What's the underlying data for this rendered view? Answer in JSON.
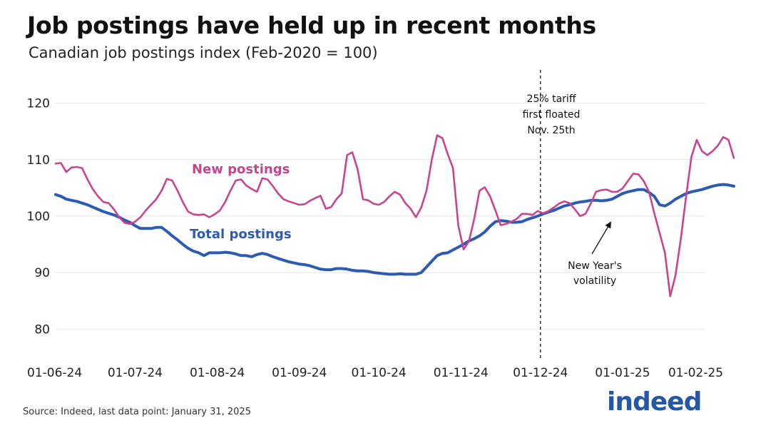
{
  "title": "Job postings have held up in recent months",
  "subtitle": "Canadian job postings index (Feb-2020 = 100)",
  "source": "Source: Indeed, last data point: January 31, 2025",
  "logo": {
    "text": "indeed",
    "color": "#2557a7"
  },
  "colors": {
    "new": "#c8448f",
    "total": "#2c5bb1",
    "grid": "#e3e3e3"
  },
  "chart_data": {
    "type": "line",
    "title": "Job postings have held up in recent months",
    "subtitle": "Canadian job postings index (Feb-2020 = 100)",
    "xlabel": "",
    "ylabel": "",
    "x_ticks": [
      "01-06-24",
      "01-07-24",
      "01-08-24",
      "01-09-24",
      "01-10-24",
      "01-11-24",
      "01-12-24",
      "01-01-25",
      "01-02-25"
    ],
    "xlim": [
      "2024-06-01",
      "2025-02-01"
    ],
    "y_ticks": [
      "80",
      "90",
      "100",
      "110",
      "120"
    ],
    "ylim": [
      77,
      125
    ],
    "grid": "horizontal",
    "series": [
      {
        "name": "New postings",
        "color": "#c8448f",
        "points": [
          [
            "2024-06-01",
            109.3
          ],
          [
            "2024-06-03",
            109.4
          ],
          [
            "2024-06-05",
            107.8
          ],
          [
            "2024-06-07",
            108.6
          ],
          [
            "2024-06-09",
            108.7
          ],
          [
            "2024-06-11",
            108.5
          ],
          [
            "2024-06-13",
            106.5
          ],
          [
            "2024-06-15",
            104.8
          ],
          [
            "2024-06-17",
            103.5
          ],
          [
            "2024-06-19",
            102.5
          ],
          [
            "2024-06-21",
            102.3
          ],
          [
            "2024-06-23",
            101.2
          ],
          [
            "2024-06-25",
            99.8
          ],
          [
            "2024-06-27",
            98.8
          ],
          [
            "2024-06-29",
            98.6
          ],
          [
            "2024-07-01",
            99.0
          ],
          [
            "2024-07-03",
            99.8
          ],
          [
            "2024-07-05",
            101.0
          ],
          [
            "2024-07-07",
            102.0
          ],
          [
            "2024-07-09",
            103.0
          ],
          [
            "2024-07-11",
            104.5
          ],
          [
            "2024-07-13",
            106.6
          ],
          [
            "2024-07-15",
            106.3
          ],
          [
            "2024-07-17",
            104.5
          ],
          [
            "2024-07-19",
            102.5
          ],
          [
            "2024-07-21",
            100.8
          ],
          [
            "2024-07-23",
            100.3
          ],
          [
            "2024-07-25",
            100.2
          ],
          [
            "2024-07-27",
            100.3
          ],
          [
            "2024-07-29",
            99.8
          ],
          [
            "2024-07-31",
            100.3
          ],
          [
            "2024-08-02",
            101.0
          ],
          [
            "2024-08-04",
            102.5
          ],
          [
            "2024-08-06",
            104.5
          ],
          [
            "2024-08-08",
            106.3
          ],
          [
            "2024-08-10",
            106.5
          ],
          [
            "2024-08-12",
            105.4
          ],
          [
            "2024-08-14",
            104.8
          ],
          [
            "2024-08-16",
            104.3
          ],
          [
            "2024-08-18",
            106.7
          ],
          [
            "2024-08-20",
            106.5
          ],
          [
            "2024-08-22",
            105.3
          ],
          [
            "2024-08-24",
            104.0
          ],
          [
            "2024-08-26",
            103.0
          ],
          [
            "2024-08-28",
            102.6
          ],
          [
            "2024-08-30",
            102.3
          ],
          [
            "2024-09-01",
            102.0
          ],
          [
            "2024-09-03",
            102.1
          ],
          [
            "2024-09-05",
            102.7
          ],
          [
            "2024-09-07",
            103.2
          ],
          [
            "2024-09-09",
            103.6
          ],
          [
            "2024-09-11",
            101.3
          ],
          [
            "2024-09-13",
            101.6
          ],
          [
            "2024-09-15",
            103.0
          ],
          [
            "2024-09-17",
            104.0
          ],
          [
            "2024-09-19",
            110.8
          ],
          [
            "2024-09-21",
            111.3
          ],
          [
            "2024-09-23",
            108.3
          ],
          [
            "2024-09-25",
            103.0
          ],
          [
            "2024-09-27",
            102.8
          ],
          [
            "2024-09-29",
            102.2
          ],
          [
            "2024-10-01",
            102.0
          ],
          [
            "2024-10-03",
            102.5
          ],
          [
            "2024-10-05",
            103.5
          ],
          [
            "2024-10-07",
            104.3
          ],
          [
            "2024-10-09",
            103.8
          ],
          [
            "2024-10-11",
            102.3
          ],
          [
            "2024-10-13",
            101.3
          ],
          [
            "2024-10-15",
            99.8
          ],
          [
            "2024-10-17",
            101.5
          ],
          [
            "2024-10-19",
            104.5
          ],
          [
            "2024-10-21",
            110.0
          ],
          [
            "2024-10-23",
            114.3
          ],
          [
            "2024-10-25",
            113.8
          ],
          [
            "2024-10-27",
            111.0
          ],
          [
            "2024-10-29",
            108.5
          ],
          [
            "2024-10-31",
            98.3
          ],
          [
            "2024-11-02",
            94.1
          ],
          [
            "2024-11-04",
            95.5
          ],
          [
            "2024-11-06",
            99.5
          ],
          [
            "2024-11-08",
            104.5
          ],
          [
            "2024-11-10",
            105.1
          ],
          [
            "2024-11-12",
            103.5
          ],
          [
            "2024-11-14",
            101.0
          ],
          [
            "2024-11-16",
            98.4
          ],
          [
            "2024-11-18",
            98.6
          ],
          [
            "2024-11-20",
            99.0
          ],
          [
            "2024-11-22",
            99.5
          ],
          [
            "2024-11-24",
            100.4
          ],
          [
            "2024-11-26",
            100.4
          ],
          [
            "2024-11-28",
            100.2
          ],
          [
            "2024-11-30",
            100.9
          ],
          [
            "2024-12-02",
            100.5
          ],
          [
            "2024-12-04",
            100.9
          ],
          [
            "2024-12-06",
            101.5
          ],
          [
            "2024-12-08",
            102.2
          ],
          [
            "2024-12-10",
            102.6
          ],
          [
            "2024-12-12",
            102.3
          ],
          [
            "2024-12-14",
            101.2
          ],
          [
            "2024-12-16",
            100.0
          ],
          [
            "2024-12-18",
            100.4
          ],
          [
            "2024-12-20",
            102.2
          ],
          [
            "2024-12-22",
            104.3
          ],
          [
            "2024-12-24",
            104.6
          ],
          [
            "2024-12-26",
            104.7
          ],
          [
            "2024-12-28",
            104.3
          ],
          [
            "2024-12-30",
            104.3
          ],
          [
            "2025-01-01",
            104.9
          ],
          [
            "2025-01-03",
            106.2
          ],
          [
            "2025-01-05",
            107.5
          ],
          [
            "2025-01-07",
            107.4
          ],
          [
            "2025-01-09",
            106.2
          ],
          [
            "2025-01-11",
            104.3
          ],
          [
            "2025-01-13",
            100.5
          ],
          [
            "2025-01-15",
            97.0
          ],
          [
            "2025-01-17",
            93.5
          ],
          [
            "2025-01-19",
            85.8
          ],
          [
            "2025-01-21",
            89.5
          ],
          [
            "2025-01-23",
            96.0
          ],
          [
            "2025-01-25",
            103.5
          ],
          [
            "2025-01-27",
            110.5
          ],
          [
            "2025-01-29",
            113.5
          ],
          [
            "2025-01-31",
            111.5
          ],
          [
            "2025-02-02",
            110.8
          ],
          [
            "2025-02-04",
            111.5
          ],
          [
            "2025-02-06",
            112.5
          ],
          [
            "2025-02-08",
            114.0
          ],
          [
            "2025-02-10",
            113.5
          ],
          [
            "2025-02-12",
            110.3
          ]
        ]
      },
      {
        "name": "Total postings",
        "color": "#2c5bb1",
        "points": [
          [
            "2024-06-01",
            103.8
          ],
          [
            "2024-06-03",
            103.5
          ],
          [
            "2024-06-05",
            103.0
          ],
          [
            "2024-06-07",
            102.8
          ],
          [
            "2024-06-09",
            102.6
          ],
          [
            "2024-06-11",
            102.3
          ],
          [
            "2024-06-13",
            102.0
          ],
          [
            "2024-06-15",
            101.6
          ],
          [
            "2024-06-17",
            101.2
          ],
          [
            "2024-06-19",
            100.8
          ],
          [
            "2024-06-21",
            100.5
          ],
          [
            "2024-06-23",
            100.2
          ],
          [
            "2024-06-25",
            99.8
          ],
          [
            "2024-06-27",
            99.3
          ],
          [
            "2024-06-29",
            98.9
          ],
          [
            "2024-07-01",
            98.3
          ],
          [
            "2024-07-03",
            97.8
          ],
          [
            "2024-07-05",
            97.8
          ],
          [
            "2024-07-07",
            97.8
          ],
          [
            "2024-07-09",
            98.0
          ],
          [
            "2024-07-11",
            98.0
          ],
          [
            "2024-07-13",
            97.3
          ],
          [
            "2024-07-15",
            96.5
          ],
          [
            "2024-07-17",
            95.8
          ],
          [
            "2024-07-19",
            95.0
          ],
          [
            "2024-07-21",
            94.3
          ],
          [
            "2024-07-23",
            93.8
          ],
          [
            "2024-07-25",
            93.5
          ],
          [
            "2024-07-27",
            93.0
          ],
          [
            "2024-07-29",
            93.5
          ],
          [
            "2024-07-31",
            93.5
          ],
          [
            "2024-08-02",
            93.5
          ],
          [
            "2024-08-04",
            93.6
          ],
          [
            "2024-08-06",
            93.5
          ],
          [
            "2024-08-08",
            93.3
          ],
          [
            "2024-08-10",
            93.0
          ],
          [
            "2024-08-12",
            93.0
          ],
          [
            "2024-08-14",
            92.8
          ],
          [
            "2024-08-16",
            93.2
          ],
          [
            "2024-08-18",
            93.4
          ],
          [
            "2024-08-20",
            93.2
          ],
          [
            "2024-08-22",
            92.8
          ],
          [
            "2024-08-24",
            92.5
          ],
          [
            "2024-08-26",
            92.2
          ],
          [
            "2024-08-28",
            91.9
          ],
          [
            "2024-08-30",
            91.7
          ],
          [
            "2024-09-01",
            91.5
          ],
          [
            "2024-09-03",
            91.4
          ],
          [
            "2024-09-05",
            91.2
          ],
          [
            "2024-09-07",
            90.9
          ],
          [
            "2024-09-09",
            90.6
          ],
          [
            "2024-09-11",
            90.5
          ],
          [
            "2024-09-13",
            90.5
          ],
          [
            "2024-09-15",
            90.7
          ],
          [
            "2024-09-17",
            90.7
          ],
          [
            "2024-09-19",
            90.6
          ],
          [
            "2024-09-21",
            90.4
          ],
          [
            "2024-09-23",
            90.3
          ],
          [
            "2024-09-25",
            90.3
          ],
          [
            "2024-09-27",
            90.2
          ],
          [
            "2024-09-29",
            90.0
          ],
          [
            "2024-10-01",
            89.9
          ],
          [
            "2024-10-03",
            89.8
          ],
          [
            "2024-10-05",
            89.7
          ],
          [
            "2024-10-07",
            89.7
          ],
          [
            "2024-10-09",
            89.8
          ],
          [
            "2024-10-11",
            89.7
          ],
          [
            "2024-10-13",
            89.7
          ],
          [
            "2024-10-15",
            89.7
          ],
          [
            "2024-10-17",
            90.0
          ],
          [
            "2024-10-19",
            91.0
          ],
          [
            "2024-10-21",
            92.0
          ],
          [
            "2024-10-23",
            93.0
          ],
          [
            "2024-10-25",
            93.4
          ],
          [
            "2024-10-27",
            93.5
          ],
          [
            "2024-10-29",
            94.0
          ],
          [
            "2024-10-31",
            94.5
          ],
          [
            "2024-11-02",
            95.0
          ],
          [
            "2024-11-04",
            95.6
          ],
          [
            "2024-11-06",
            96.0
          ],
          [
            "2024-11-08",
            96.5
          ],
          [
            "2024-11-10",
            97.2
          ],
          [
            "2024-11-12",
            98.2
          ],
          [
            "2024-11-14",
            99.0
          ],
          [
            "2024-11-16",
            99.2
          ],
          [
            "2024-11-18",
            99.1
          ],
          [
            "2024-11-20",
            98.9
          ],
          [
            "2024-11-22",
            98.9
          ],
          [
            "2024-11-24",
            99.0
          ],
          [
            "2024-11-26",
            99.4
          ],
          [
            "2024-11-28",
            99.7
          ],
          [
            "2024-11-30",
            100.0
          ],
          [
            "2024-12-02",
            100.4
          ],
          [
            "2024-12-04",
            100.7
          ],
          [
            "2024-12-06",
            101.0
          ],
          [
            "2024-12-08",
            101.4
          ],
          [
            "2024-12-10",
            101.8
          ],
          [
            "2024-12-12",
            102.0
          ],
          [
            "2024-12-14",
            102.3
          ],
          [
            "2024-12-16",
            102.5
          ],
          [
            "2024-12-18",
            102.6
          ],
          [
            "2024-12-20",
            102.8
          ],
          [
            "2024-12-22",
            102.8
          ],
          [
            "2024-12-24",
            102.7
          ],
          [
            "2024-12-26",
            102.8
          ],
          [
            "2024-12-28",
            103.0
          ],
          [
            "2024-12-30",
            103.5
          ],
          [
            "2025-01-01",
            104.0
          ],
          [
            "2025-01-03",
            104.3
          ],
          [
            "2025-01-05",
            104.5
          ],
          [
            "2025-01-07",
            104.7
          ],
          [
            "2025-01-09",
            104.7
          ],
          [
            "2025-01-11",
            104.2
          ],
          [
            "2025-01-13",
            103.5
          ],
          [
            "2025-01-15",
            102.0
          ],
          [
            "2025-01-17",
            101.8
          ],
          [
            "2025-01-19",
            102.3
          ],
          [
            "2025-01-21",
            103.0
          ],
          [
            "2025-01-23",
            103.5
          ],
          [
            "2025-01-25",
            104.0
          ],
          [
            "2025-01-27",
            104.3
          ],
          [
            "2025-01-29",
            104.5
          ],
          [
            "2025-01-31",
            104.7
          ],
          [
            "2025-02-02",
            105.0
          ],
          [
            "2025-02-04",
            105.3
          ],
          [
            "2025-02-06",
            105.5
          ],
          [
            "2025-02-08",
            105.6
          ],
          [
            "2025-02-10",
            105.5
          ],
          [
            "2025-02-12",
            105.3
          ]
        ]
      }
    ],
    "annotations": [
      {
        "date": "2024-12-01",
        "kind": "vertical-dashed-line",
        "lines": [
          "25% tariff",
          "first floated",
          "Nov. 25th"
        ]
      },
      {
        "date": "2025-01-18",
        "value": 86.5,
        "kind": "arrow-note",
        "lines": [
          "New Year's",
          "volatility"
        ]
      }
    ]
  }
}
